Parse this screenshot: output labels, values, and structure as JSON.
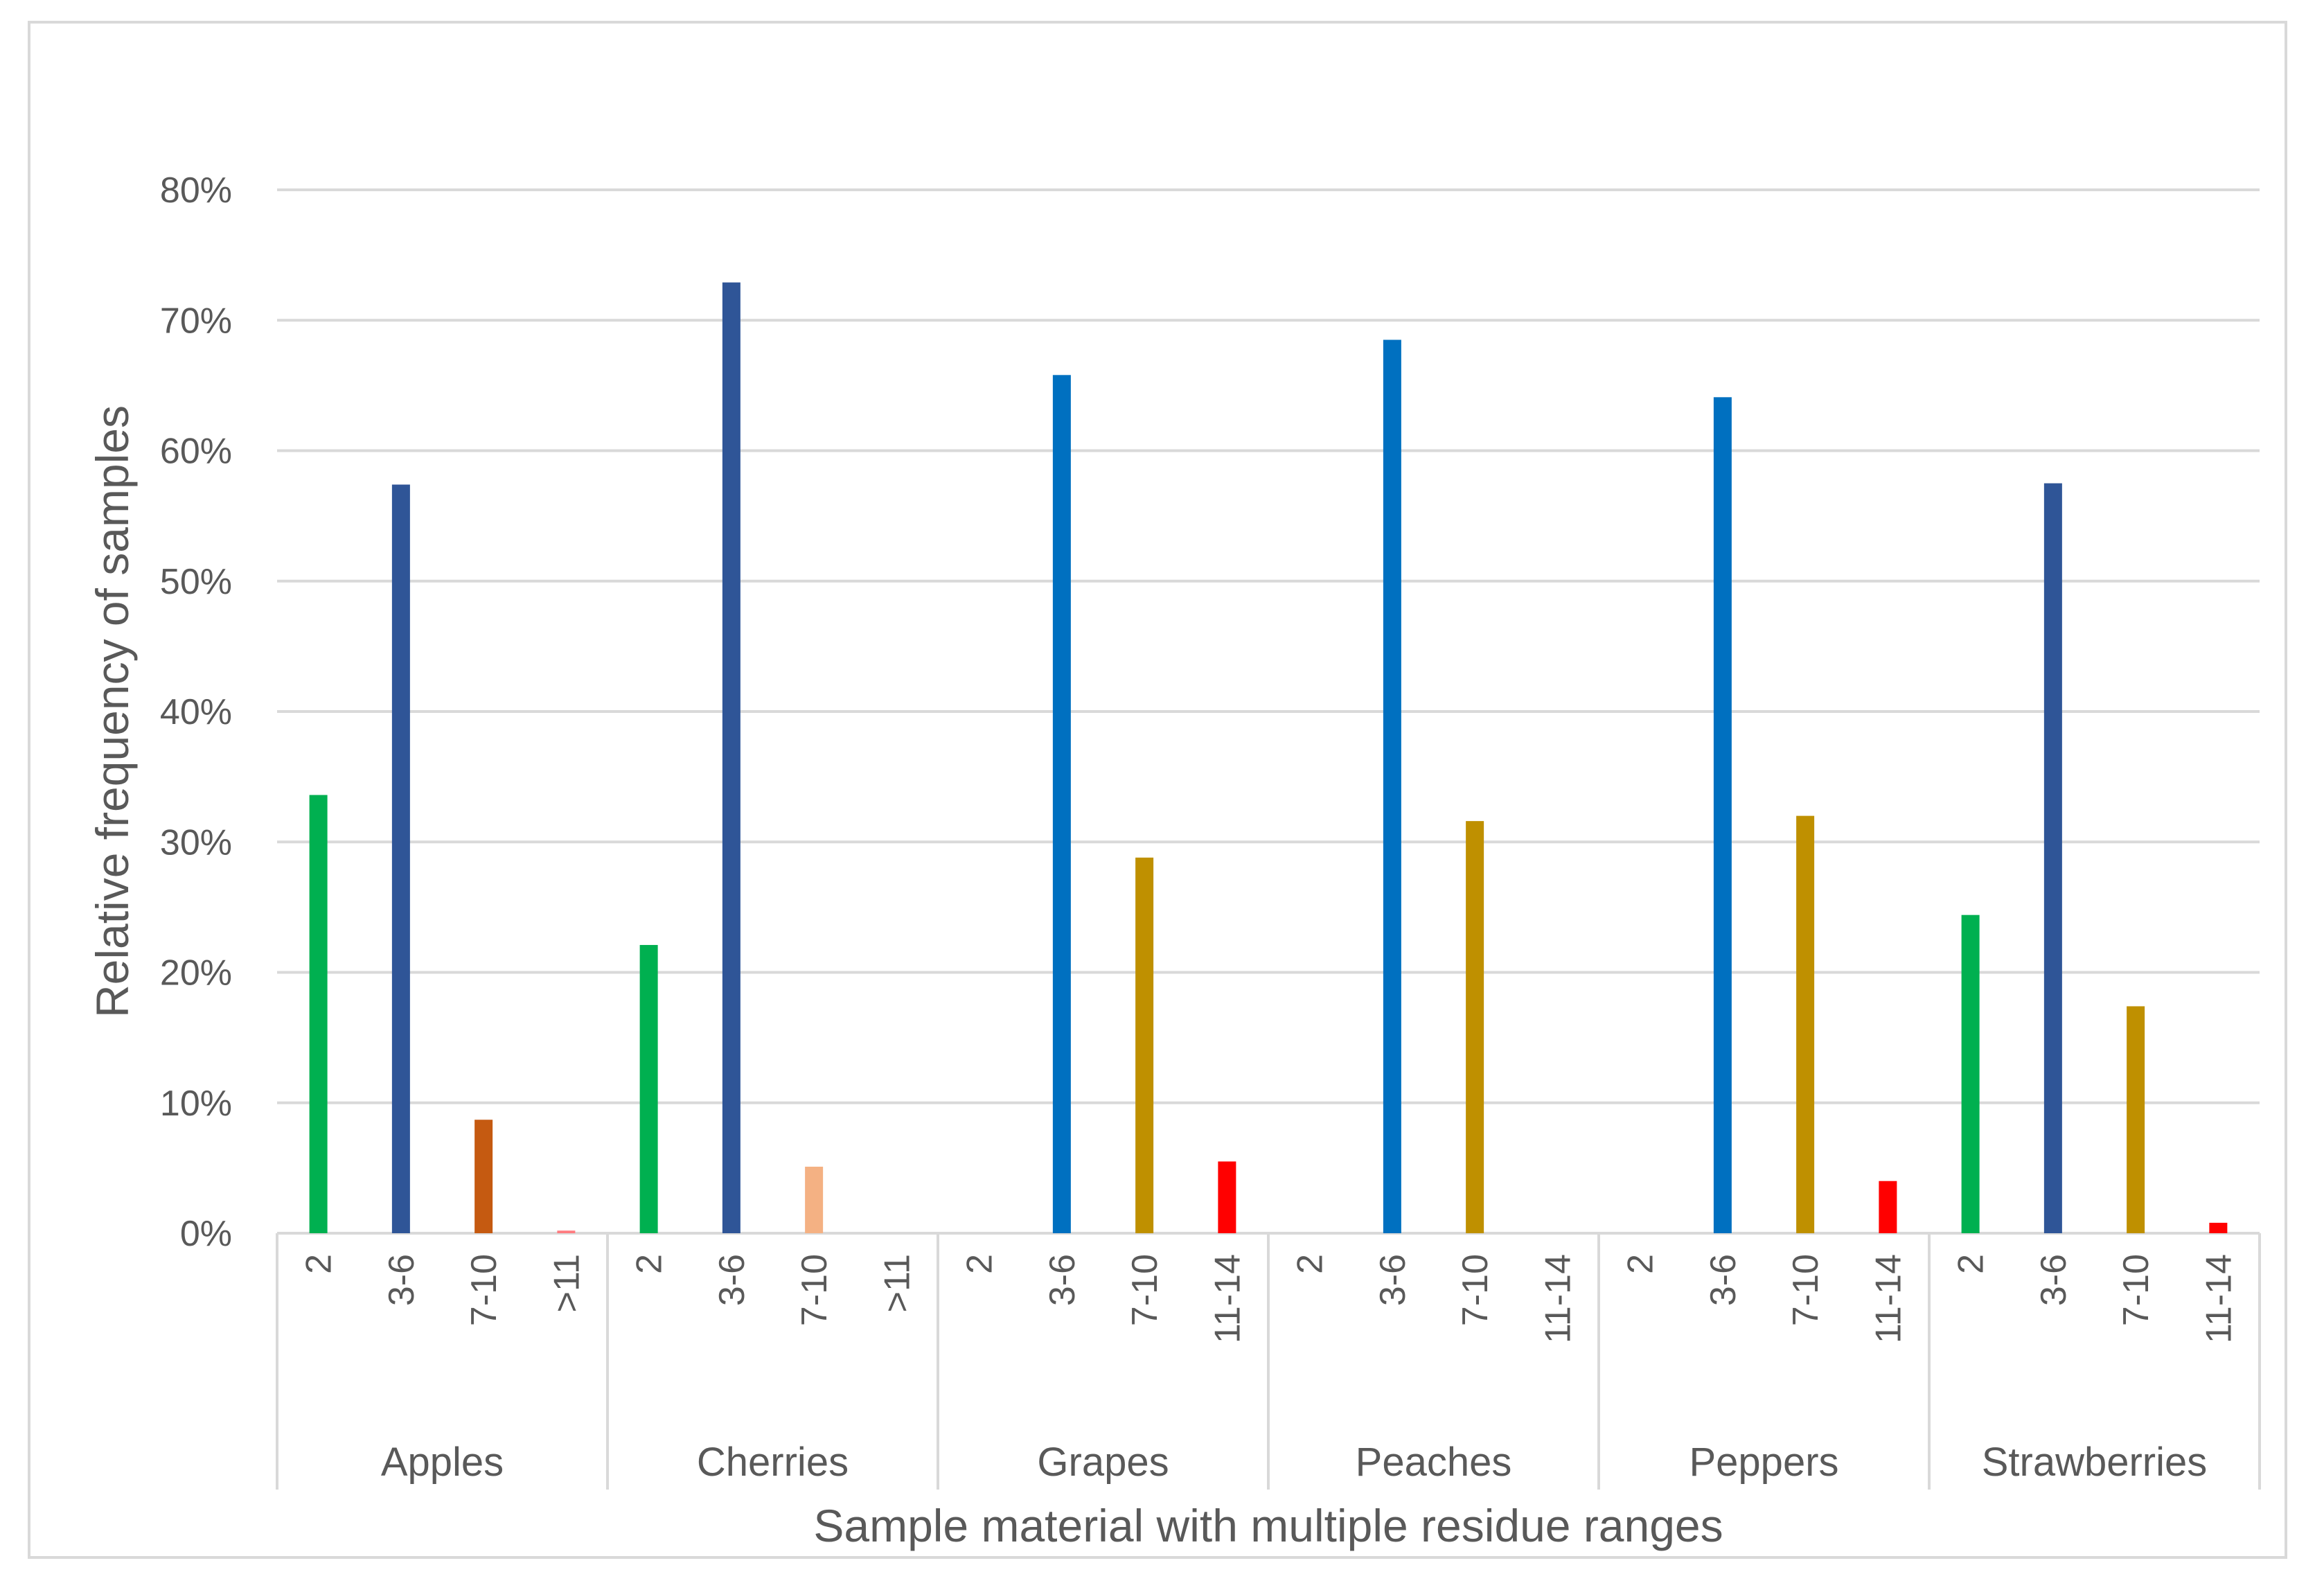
{
  "chart_data": {
    "type": "bar",
    "title": "",
    "xlabel": "Sample material with multiple residue ranges",
    "ylabel": "Relative frequency of samples",
    "ylim": [
      0,
      0.8
    ],
    "yticks": [
      0,
      0.1,
      0.2,
      0.3,
      0.4,
      0.5,
      0.6,
      0.7,
      0.8
    ],
    "ytick_labels": [
      "0%",
      "10%",
      "20%",
      "30%",
      "40%",
      "50%",
      "60%",
      "70%",
      "80%"
    ],
    "grid": true,
    "legend": "none",
    "groups": [
      {
        "name": "Apples",
        "bars": [
          {
            "label": "2",
            "value": 0.336,
            "color": "#00b050"
          },
          {
            "label": "3-6",
            "value": 0.574,
            "color": "#2f5597"
          },
          {
            "label": "7-10",
            "value": 0.087,
            "color": "#c55a11"
          },
          {
            "label": ">11",
            "value": 0.002,
            "color": "#ff7c80"
          }
        ]
      },
      {
        "name": "Cherries",
        "bars": [
          {
            "label": "2",
            "value": 0.221,
            "color": "#00b050"
          },
          {
            "label": "3-6",
            "value": 0.729,
            "color": "#2f5597"
          },
          {
            "label": "7-10",
            "value": 0.051,
            "color": "#f4b183"
          },
          {
            "label": ">11",
            "value": 0,
            "color": "#f4b183"
          }
        ]
      },
      {
        "name": "Grapes",
        "bars": [
          {
            "label": "2",
            "value": 0,
            "color": "#00b050"
          },
          {
            "label": "3-6",
            "value": 0.658,
            "color": "#0070c0"
          },
          {
            "label": "7-10",
            "value": 0.288,
            "color": "#bf9000"
          },
          {
            "label": "11-14",
            "value": 0.055,
            "color": "#ff0000"
          }
        ]
      },
      {
        "name": "Peaches",
        "bars": [
          {
            "label": "2",
            "value": 0,
            "color": "#00b050"
          },
          {
            "label": "3-6",
            "value": 0.685,
            "color": "#0070c0"
          },
          {
            "label": "7-10",
            "value": 0.316,
            "color": "#bf9000"
          },
          {
            "label": "11-14",
            "value": 0,
            "color": "#ff0000"
          }
        ]
      },
      {
        "name": "Peppers",
        "bars": [
          {
            "label": "2",
            "value": 0,
            "color": "#00b050"
          },
          {
            "label": "3-6",
            "value": 0.641,
            "color": "#0070c0"
          },
          {
            "label": "7-10",
            "value": 0.32,
            "color": "#bf9000"
          },
          {
            "label": "11-14",
            "value": 0.04,
            "color": "#ff0000"
          }
        ]
      },
      {
        "name": "Strawberries",
        "bars": [
          {
            "label": "2",
            "value": 0.244,
            "color": "#00b050"
          },
          {
            "label": "3-6",
            "value": 0.575,
            "color": "#2f5597"
          },
          {
            "label": "7-10",
            "value": 0.174,
            "color": "#bf9000"
          },
          {
            "label": "11-14",
            "value": 0.008,
            "color": "#ff0000"
          }
        ]
      }
    ]
  },
  "colors": {
    "gridline": "#d9d9d9",
    "axis_text": "#595959",
    "frame": "#d9d9d9"
  }
}
